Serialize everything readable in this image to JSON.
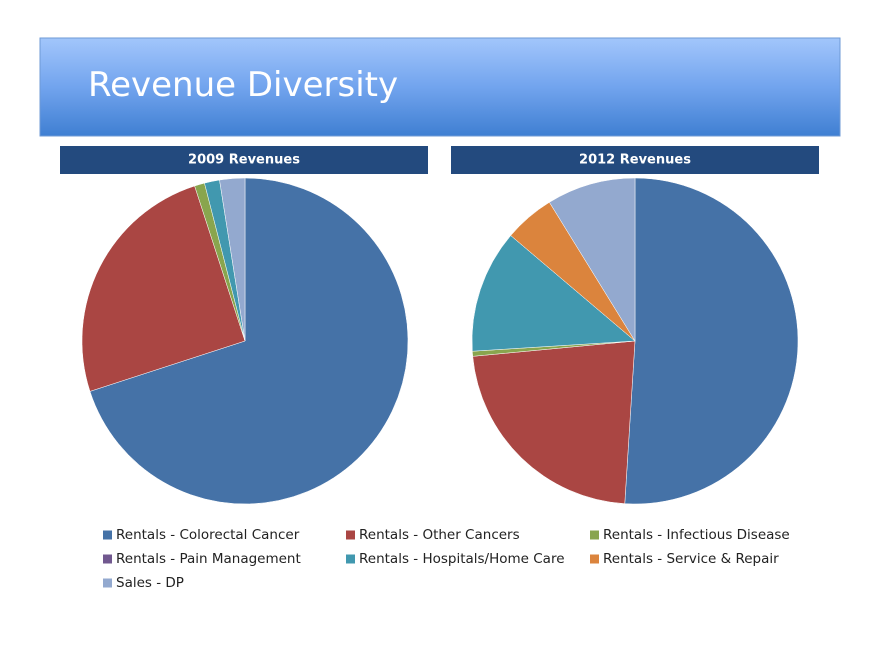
{
  "slide_title": "Revenue Diversity",
  "chart_data": [
    {
      "type": "pie",
      "title": "2009 Revenues",
      "categories": [
        "Rentals - Colorectal Cancer",
        "Rentals - Other Cancers",
        "Rentals - Infectious Disease",
        "Rentals - Pain Management",
        "Rentals - Hospitals/Home Care",
        "Rentals - Service & Repair",
        "Sales - DP"
      ],
      "values": [
        70,
        25,
        1,
        0,
        1.5,
        0,
        2.5
      ],
      "colors": [
        "#4572a7",
        "#aa4643",
        "#89a54e",
        "#71588f",
        "#4198af",
        "#db843d",
        "#93a9cf"
      ]
    },
    {
      "type": "pie",
      "title": "2012 Revenues",
      "categories": [
        "Rentals - Colorectal Cancer",
        "Rentals - Other Cancers",
        "Rentals - Infectious Disease",
        "Rentals - Pain Management",
        "Rentals - Hospitals/Home Care",
        "Rentals - Service & Repair",
        "Sales - DP"
      ],
      "values": [
        51,
        22.5,
        0.5,
        0,
        12.2,
        5,
        8.8
      ],
      "colors": [
        "#4572a7",
        "#aa4643",
        "#89a54e",
        "#71588f",
        "#4198af",
        "#db843d",
        "#93a9cf"
      ]
    }
  ]
}
